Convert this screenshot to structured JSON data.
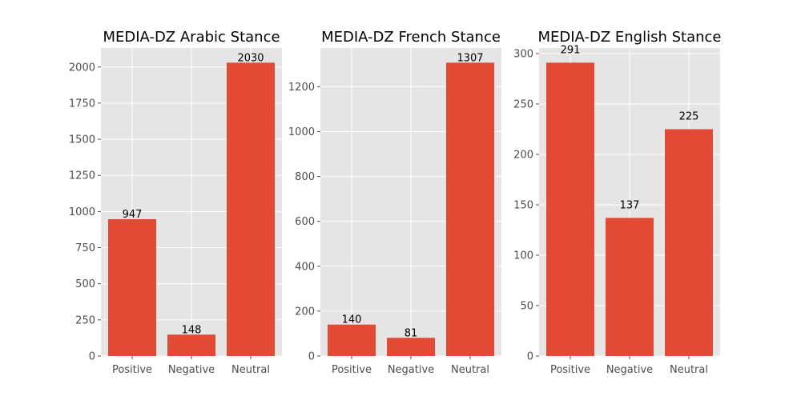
{
  "chart_data": [
    {
      "type": "bar",
      "title": "MEDIA-DZ Arabic Stance",
      "categories": [
        "Positive",
        "Negative",
        "Neutral"
      ],
      "values": [
        947,
        148,
        2030
      ],
      "ylim": [
        0,
        2131.5
      ],
      "yticks": [
        0,
        250,
        500,
        750,
        1000,
        1250,
        1500,
        1750,
        2000
      ],
      "grid": true,
      "bar_color": "#E24A33"
    },
    {
      "type": "bar",
      "title": "MEDIA-DZ French Stance",
      "categories": [
        "Positive",
        "Negative",
        "Neutral"
      ],
      "values": [
        140,
        81,
        1307
      ],
      "ylim": [
        0,
        1372.35
      ],
      "yticks": [
        0,
        200,
        400,
        600,
        800,
        1000,
        1200
      ],
      "grid": true,
      "bar_color": "#E24A33"
    },
    {
      "type": "bar",
      "title": "MEDIA-DZ English Stance",
      "categories": [
        "Positive",
        "Negative",
        "Neutral"
      ],
      "values": [
        291,
        137,
        225
      ],
      "ylim": [
        0,
        305.55
      ],
      "yticks": [
        0,
        50,
        100,
        150,
        200,
        250,
        300
      ],
      "grid": true,
      "bar_color": "#E24A33"
    }
  ],
  "colors": {
    "plot_background": "#E5E5E5",
    "grid": "#FFFFFF",
    "bar": "#E24A33",
    "tick_text": "#4D4D4D"
  }
}
